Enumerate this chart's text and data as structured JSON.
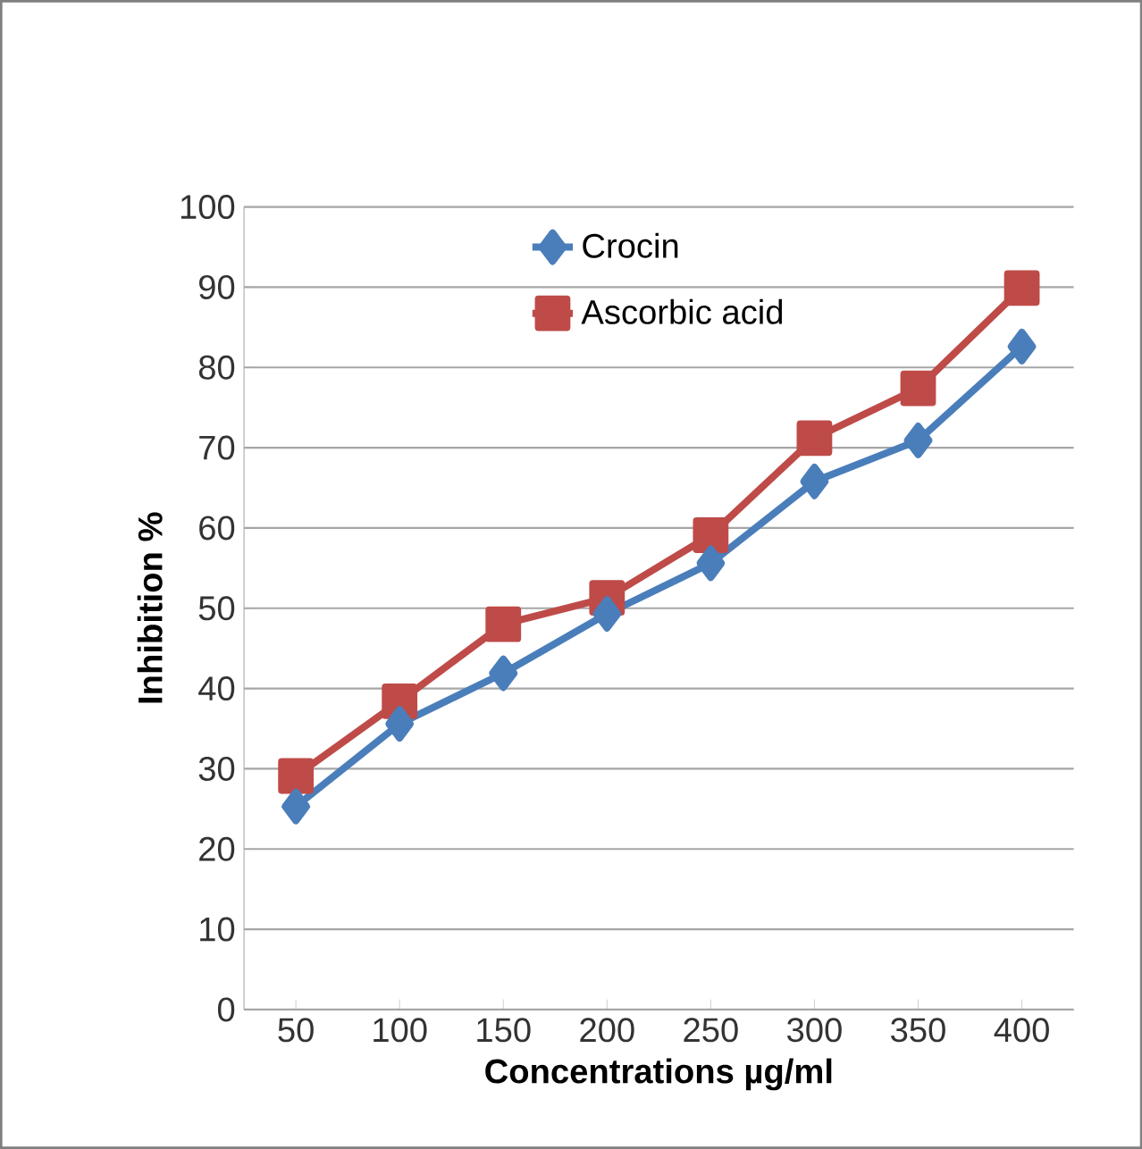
{
  "chart_data": {
    "type": "line",
    "xlabel": "Concentrations µg/ml",
    "ylabel": "Inhibition %",
    "categories": [
      "50",
      "100",
      "150",
      "200",
      "250",
      "300",
      "350",
      "400"
    ],
    "series": [
      {
        "name": "Crocin",
        "color": "#4a7ebb",
        "marker": "diamond",
        "values": [
          25.3,
          35.6,
          41.9,
          49.3,
          55.6,
          65.8,
          70.9,
          82.6
        ]
      },
      {
        "name": "Ascorbic acid",
        "color": "#be4b48",
        "marker": "square",
        "values": [
          29.1,
          38.4,
          48.0,
          51.3,
          59.1,
          71.2,
          77.4,
          89.9
        ]
      }
    ],
    "ylim": [
      0,
      100
    ],
    "yticks": [
      0,
      10,
      20,
      30,
      40,
      50,
      60,
      70,
      80,
      90,
      100
    ],
    "grid": "y",
    "legend": "top"
  }
}
